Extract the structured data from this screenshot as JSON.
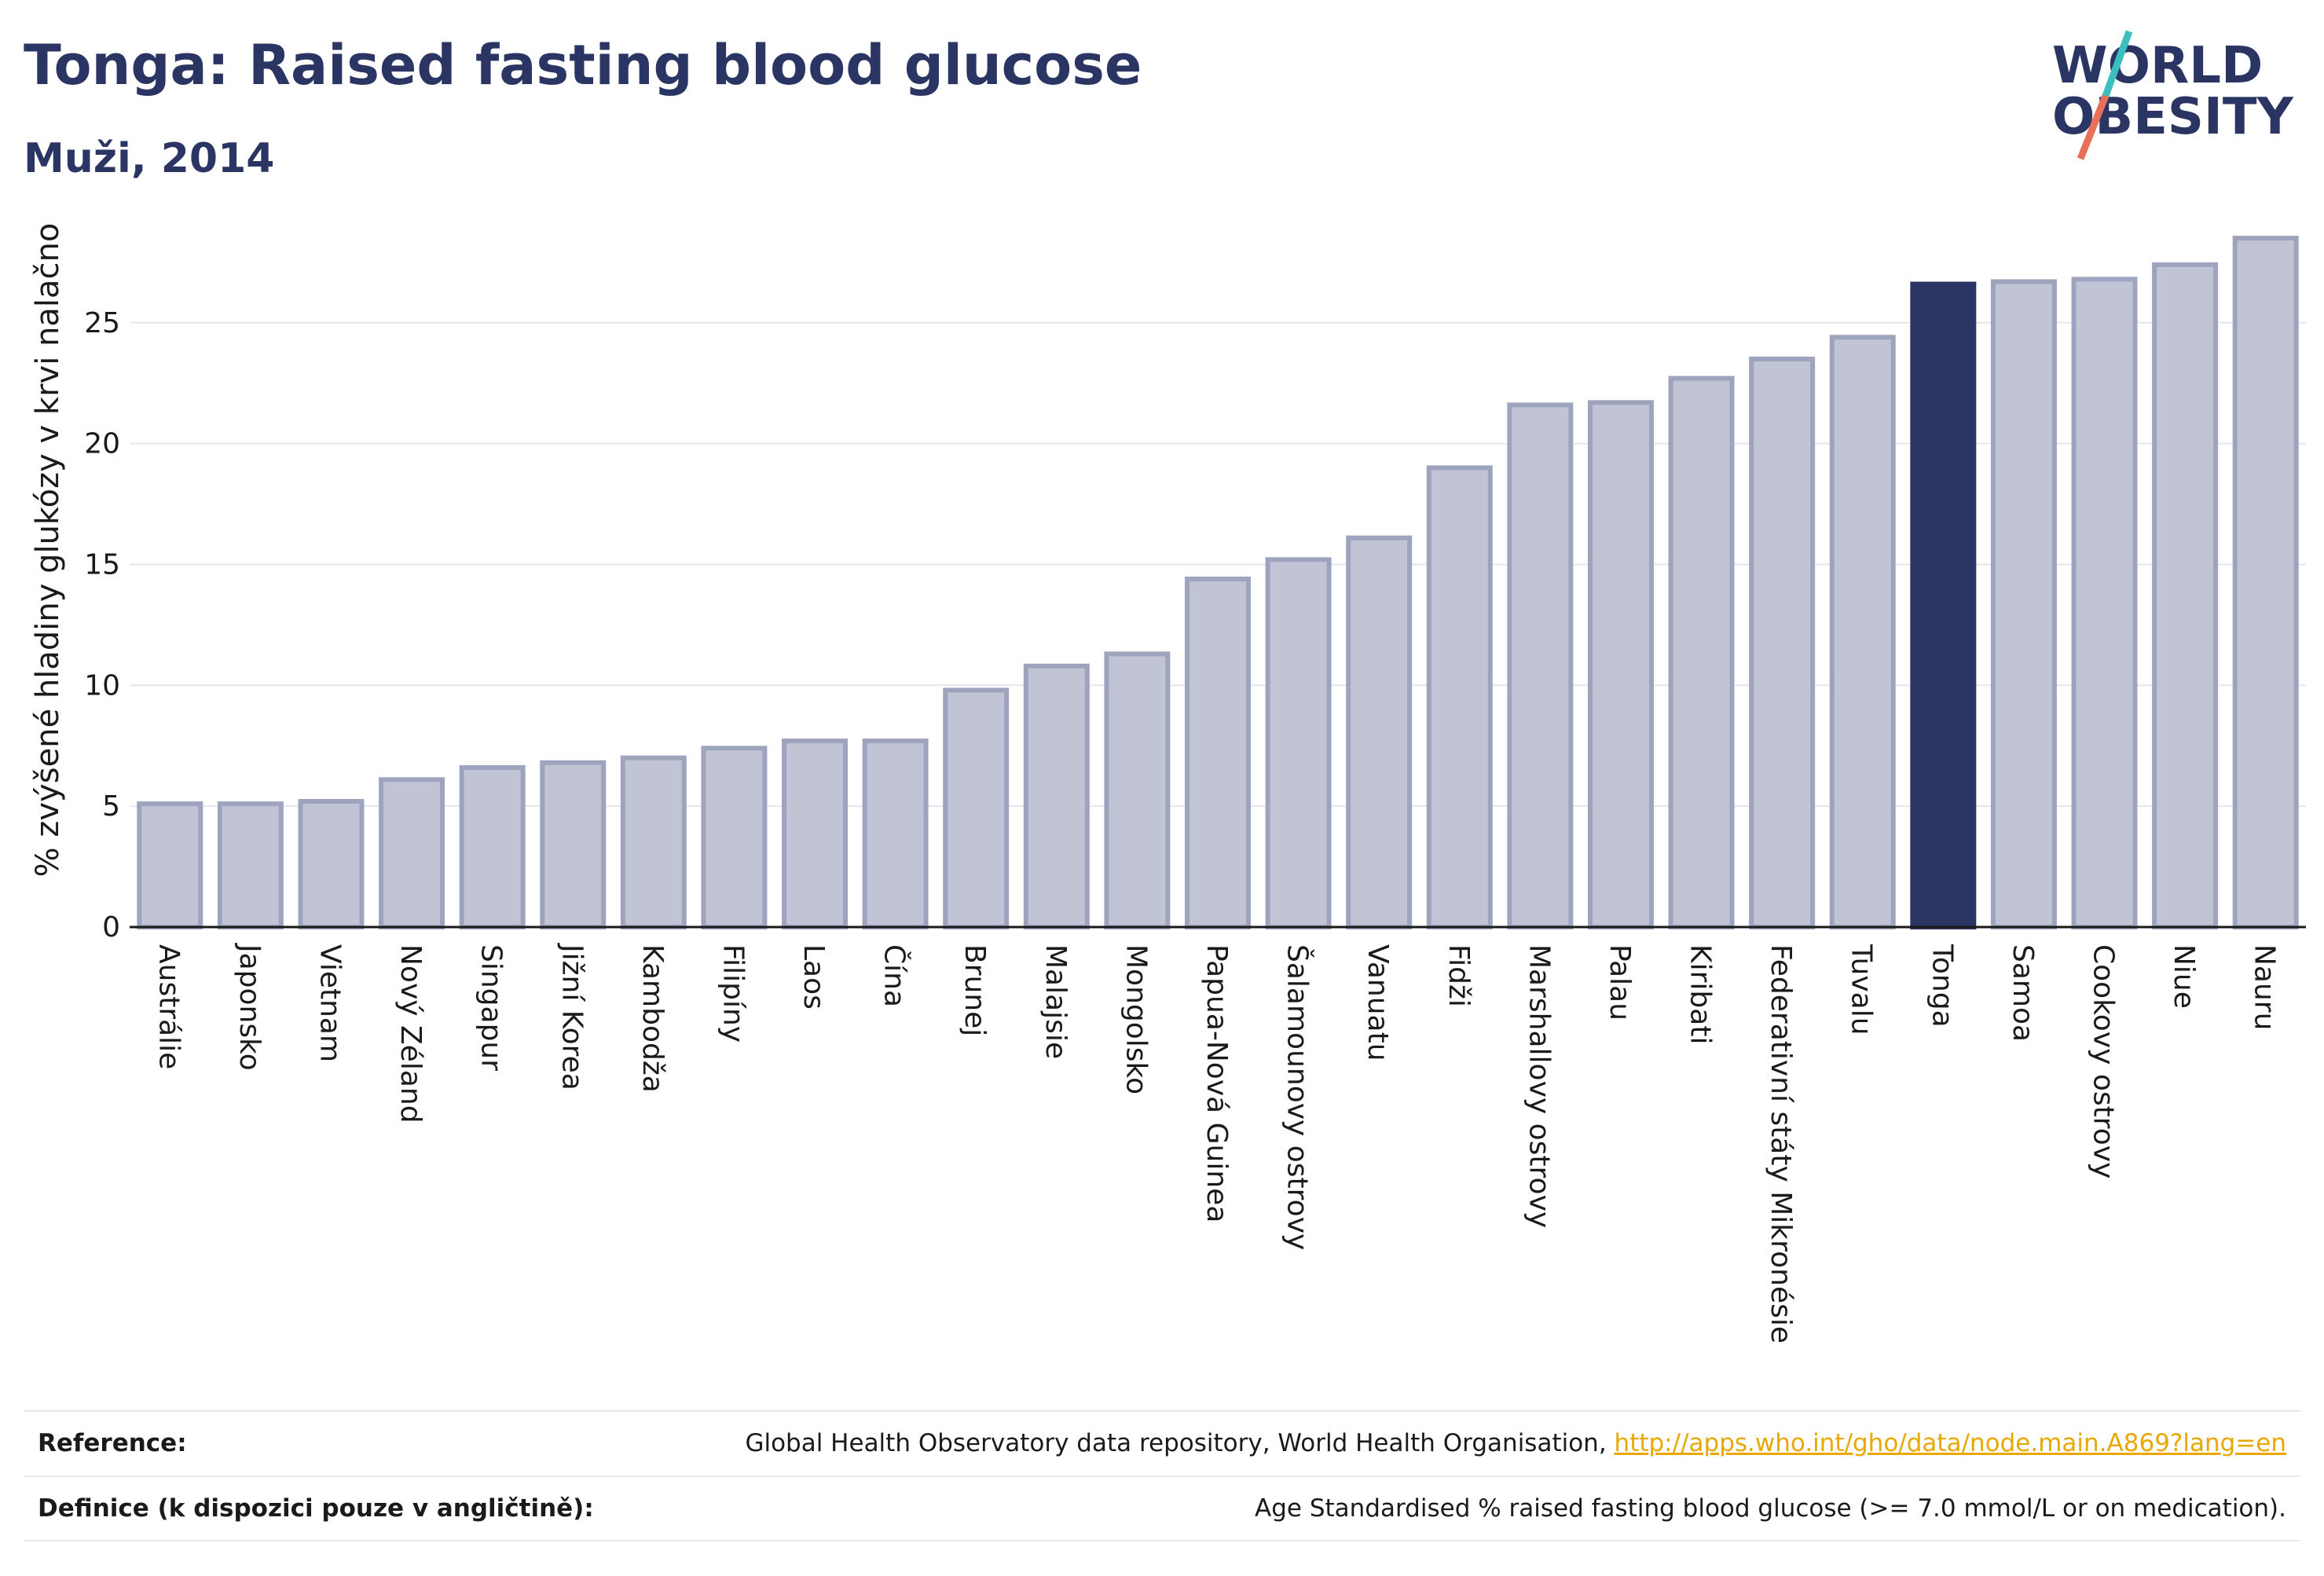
{
  "header": {
    "title": "Tonga: Raised fasting blood glucose",
    "subtitle": "Muži, 2014"
  },
  "logo": {
    "line1": "WORLD",
    "line2": "OBESITY",
    "slash_color_top": "#3bbfbf",
    "slash_color_bottom": "#e8705a"
  },
  "colors": {
    "bar_default": "#c0c4d4",
    "bar_border": "#9ea4bd",
    "bar_highlight": "#2b3563",
    "grid": "#e6e6ee",
    "axis": "#1a1a1a"
  },
  "chart_data": {
    "type": "bar",
    "title": "",
    "xlabel": "",
    "ylabel": "% zvýšené hladiny glukózy v krvi nalačno",
    "ylim": [
      0,
      28.6
    ],
    "yticks": [
      0,
      5,
      10,
      15,
      20,
      25
    ],
    "grid": true,
    "highlight": "Tonga",
    "categories": [
      "Austrálie",
      "Japonsko",
      "Vietnam",
      "Nový Zéland",
      "Singapur",
      "Jižní Korea",
      "Kambodža",
      "Filipíny",
      "Laos",
      "Čína",
      "Brunej",
      "Malajsie",
      "Mongolsko",
      "Papua-Nová Guinea",
      "Šalamounovy ostrovy",
      "Vanuatu",
      "Fidži",
      "Marshallovy ostrovy",
      "Palau",
      "Kiribati",
      "Federativní státy Mikronésie",
      "Tuvalu",
      "Tonga",
      "Samoa",
      "Cookovy ostrovy",
      "Niue",
      "Nauru"
    ],
    "values": [
      5.1,
      5.1,
      5.2,
      6.1,
      6.6,
      6.8,
      7.0,
      7.4,
      7.7,
      7.7,
      9.8,
      10.8,
      11.3,
      14.4,
      15.2,
      16.1,
      19.0,
      21.6,
      21.7,
      22.7,
      23.5,
      24.4,
      26.6,
      26.7,
      26.8,
      27.4,
      28.5
    ]
  },
  "footer": {
    "reference_label": "Reference:",
    "reference_text": "Global Health Observatory data repository, World Health Organisation, ",
    "reference_link": "http://apps.who.int/gho/data/node.main.A869?lang=en",
    "definition_label": "Definice (k dispozici pouze v angličtině):",
    "definition_text": "Age Standardised % raised fasting blood glucose (>= 7.0 mmol/L or on medication)."
  }
}
